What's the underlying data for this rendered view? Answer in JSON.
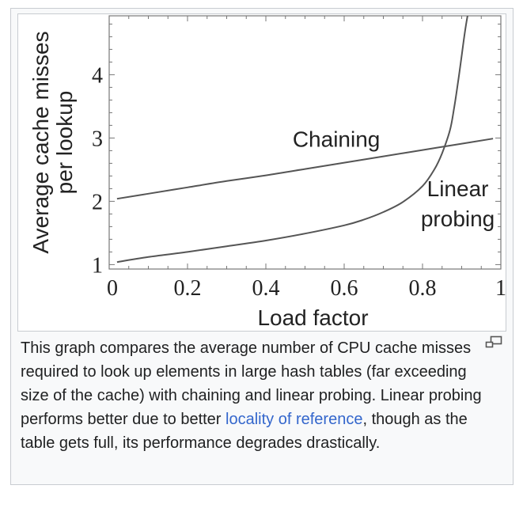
{
  "chart_data": {
    "type": "line",
    "title": "",
    "xlabel": "Load factor",
    "ylabel": [
      "Average cache misses",
      "per lookup"
    ],
    "xlim": [
      0,
      1
    ],
    "ylim": [
      0.93,
      4.93
    ],
    "xticks": [
      0,
      0.2,
      0.4,
      0.6,
      0.8,
      1
    ],
    "xtick_labels": [
      "0",
      "0.2",
      "0.4",
      "0.6",
      "0.8",
      "1"
    ],
    "yticks": [
      1,
      2,
      3,
      4
    ],
    "ytick_labels": [
      "1",
      "2",
      "3",
      "4"
    ],
    "grid": false,
    "legend": "none",
    "series": [
      {
        "name": "Chaining",
        "label_lines": [
          "Chaining"
        ],
        "color": "#555555",
        "x": [
          0.02,
          0.1,
          0.2,
          0.3,
          0.4,
          0.5,
          0.6,
          0.7,
          0.8,
          0.9,
          0.98
        ],
        "y": [
          2.04,
          2.12,
          2.22,
          2.32,
          2.41,
          2.51,
          2.61,
          2.71,
          2.81,
          2.91,
          2.99
        ]
      },
      {
        "name": "Linear probing",
        "label_lines": [
          "Linear",
          "probing"
        ],
        "color": "#555555",
        "x": [
          0.02,
          0.1,
          0.2,
          0.3,
          0.4,
          0.5,
          0.6,
          0.65,
          0.7,
          0.75,
          0.8,
          0.83,
          0.85,
          0.87,
          0.88,
          0.89,
          0.9,
          0.91,
          0.92
        ],
        "y": [
          1.04,
          1.12,
          1.2,
          1.29,
          1.38,
          1.49,
          1.62,
          1.71,
          1.83,
          1.99,
          2.24,
          2.5,
          2.76,
          3.12,
          3.45,
          3.85,
          4.3,
          4.75,
          5.1
        ]
      }
    ]
  },
  "caption": {
    "text_before": "This graph compares the average number of CPU cache misses required to look up elements in large hash tables (far exceeding size of the cache) with chaining and linear probing. Linear probing performs better due to better ",
    "link_text": "locality of reference",
    "text_after": ", though as the table gets full, its performance degrades drastically."
  },
  "icons": {
    "enlarge": "magnify-clip-icon"
  }
}
